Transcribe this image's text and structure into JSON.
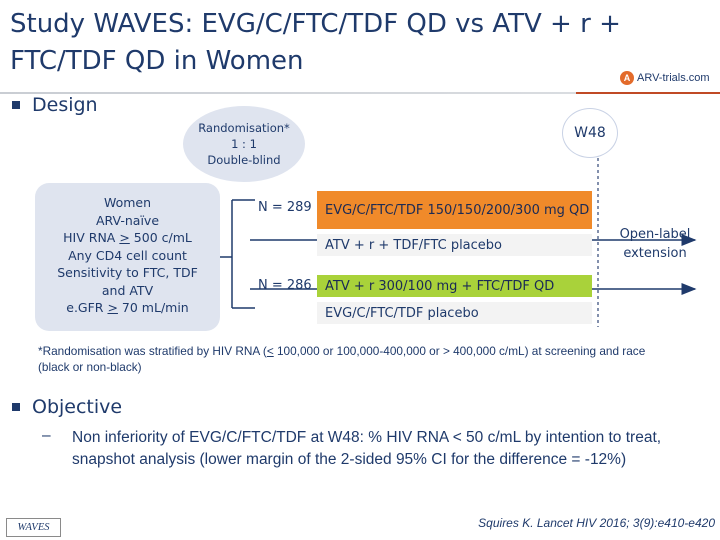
{
  "title": "Study WAVES: EVG/C/FTC/TDF QD vs ATV + r + FTC/TDF QD in Women",
  "logo": {
    "text": "ARV-trials.com",
    "mark": "A"
  },
  "design": {
    "heading": "Design",
    "randomisation": {
      "line1": "Randomisation*",
      "line2": "1 : 1",
      "line3": "Double-blind"
    },
    "w48": "W48",
    "population": {
      "line1": "Women",
      "line2": "ARV-naïve",
      "line3_pre": "HIV RNA ",
      "line3_ge": ">",
      "line3_post": " 500 c/mL",
      "line4": "Any CD4 cell count",
      "line5": "Sensitivity to FTC, TDF",
      "line6": "and ATV",
      "line7_pre": "e.GFR ",
      "line7_ge": ">",
      "line7_post": " 70 mL/min"
    },
    "arm1": {
      "n": "N = 289",
      "active": "EVG/C/FTC/TDF 150/150/200/300 mg QD",
      "placebo": "ATV + r + TDF/FTC placebo"
    },
    "arm2": {
      "n": "N = 286",
      "active": "ATV + r 300/100 mg + FTC/TDF QD",
      "placebo": "EVG/C/FTC/TDF placebo"
    },
    "extension": "Open-label extension",
    "footnote_pre": "*Randomisation was stratified by HIV RNA (",
    "footnote_le": "<",
    "footnote_post": " 100,000 or 100,000-400,000 or > 400,000 c/mL) at screening and race (black or non-black)"
  },
  "objective": {
    "heading": "Objective",
    "dash": "–",
    "text": "Non inferiority of EVG/C/FTC/TDF at W48: % HIV RNA < 50 c/mL by intention to treat, snapshot analysis (lower margin of the 2-sided 95% CI for the difference = -12%)"
  },
  "footer": {
    "badge": "WAVES",
    "citation": "Squires K. Lancet HIV 2016; 3(9):e410-e420"
  },
  "colors": {
    "navy": "#1f3a6b",
    "orange": "#f08a2a",
    "green": "#a9d23a",
    "lavender": "#dfe4ef"
  }
}
